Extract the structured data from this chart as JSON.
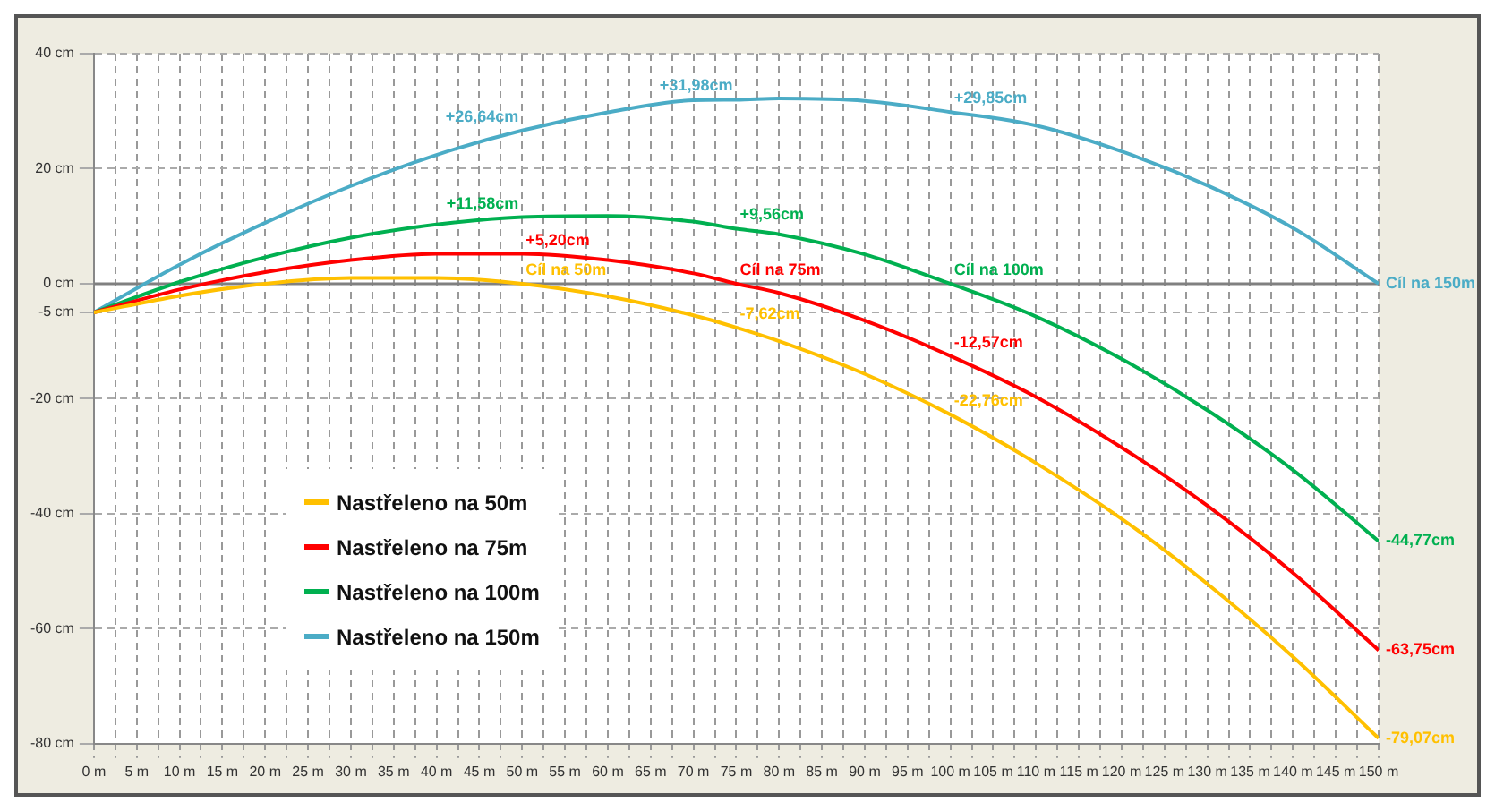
{
  "chart_data": {
    "type": "line",
    "x": [
      0,
      10,
      20,
      30,
      40,
      50,
      60,
      70,
      75,
      80,
      90,
      100,
      110,
      120,
      130,
      140,
      150
    ],
    "series": [
      {
        "name": "Nastřeleno na 50m",
        "color": "#ffc000",
        "values": [
          -5,
          -2.1,
          0,
          1,
          1,
          0,
          -2.2,
          -5.5,
          -7.62,
          -10,
          -15.7,
          -22.76,
          -31.2,
          -40.9,
          -52.2,
          -64.9,
          -79.07
        ]
      },
      {
        "name": "Nastřeleno na 75m",
        "color": "#ff0000",
        "values": [
          -5,
          -1,
          2,
          4.1,
          5.2,
          5.2,
          4.1,
          1.8,
          0,
          -1.6,
          -6.4,
          -12.57,
          -19.7,
          -28.5,
          -38.6,
          -50.3,
          -63.75
        ]
      },
      {
        "name": "Nastřeleno na 100m",
        "color": "#00b050",
        "values": [
          -5,
          0.3,
          4.6,
          8,
          10.3,
          11.58,
          11.8,
          10.8,
          9.56,
          8.6,
          5.1,
          0,
          -5.7,
          -13.1,
          -22,
          -32.4,
          -44.77
        ]
      },
      {
        "name": "Nastřeleno na 150m",
        "color": "#4bacc6",
        "values": [
          -5,
          3.3,
          10.6,
          17,
          22.4,
          26.64,
          29.8,
          31.9,
          31.98,
          32.2,
          31.8,
          29.85,
          27.5,
          23,
          17.1,
          9.7,
          0
        ]
      }
    ],
    "xlim": [
      0,
      150
    ],
    "xticks": [
      {
        "value": 0,
        "label": "0 m"
      },
      {
        "value": 2.5,
        "label": null
      },
      {
        "value": 5,
        "label": "5 m"
      },
      {
        "value": 7.5,
        "label": null
      },
      {
        "value": 10,
        "label": "10 m"
      },
      {
        "value": 12.5,
        "label": null
      },
      {
        "value": 15,
        "label": "15 m"
      },
      {
        "value": 17.5,
        "label": null
      },
      {
        "value": 20,
        "label": "20 m"
      },
      {
        "value": 22.5,
        "label": null
      },
      {
        "value": 25,
        "label": "25 m"
      },
      {
        "value": 27.5,
        "label": null
      },
      {
        "value": 30,
        "label": "30 m"
      },
      {
        "value": 32.5,
        "label": null
      },
      {
        "value": 35,
        "label": "35 m"
      },
      {
        "value": 37.5,
        "label": null
      },
      {
        "value": 40,
        "label": "40 m"
      },
      {
        "value": 42.5,
        "label": null
      },
      {
        "value": 45,
        "label": "45 m"
      },
      {
        "value": 47.5,
        "label": null
      },
      {
        "value": 50,
        "label": "50 m"
      },
      {
        "value": 52.5,
        "label": null
      },
      {
        "value": 55,
        "label": "55 m"
      },
      {
        "value": 57.5,
        "label": null
      },
      {
        "value": 60,
        "label": "60 m"
      },
      {
        "value": 62.5,
        "label": null
      },
      {
        "value": 65,
        "label": "65 m"
      },
      {
        "value": 67.5,
        "label": null
      },
      {
        "value": 70,
        "label": "70 m"
      },
      {
        "value": 72.5,
        "label": null
      },
      {
        "value": 75,
        "label": "75 m"
      },
      {
        "value": 77.5,
        "label": null
      },
      {
        "value": 80,
        "label": "80 m"
      },
      {
        "value": 82.5,
        "label": null
      },
      {
        "value": 85,
        "label": "85 m"
      },
      {
        "value": 87.5,
        "label": null
      },
      {
        "value": 90,
        "label": "90 m"
      },
      {
        "value": 92.5,
        "label": null
      },
      {
        "value": 95,
        "label": "95 m"
      },
      {
        "value": 97.5,
        "label": null
      },
      {
        "value": 100,
        "label": "100 m"
      },
      {
        "value": 102.5,
        "label": null
      },
      {
        "value": 105,
        "label": "105 m"
      },
      {
        "value": 107.5,
        "label": null
      },
      {
        "value": 110,
        "label": "110 m"
      },
      {
        "value": 112.5,
        "label": null
      },
      {
        "value": 115,
        "label": "115 m"
      },
      {
        "value": 117.5,
        "label": null
      },
      {
        "value": 120,
        "label": "120 m"
      },
      {
        "value": 122.5,
        "label": null
      },
      {
        "value": 125,
        "label": "125 m"
      },
      {
        "value": 127.5,
        "label": null
      },
      {
        "value": 130,
        "label": "130 m"
      },
      {
        "value": 132.5,
        "label": null
      },
      {
        "value": 135,
        "label": "135 m"
      },
      {
        "value": 137.5,
        "label": null
      },
      {
        "value": 140,
        "label": "140 m"
      },
      {
        "value": 142.5,
        "label": null
      },
      {
        "value": 145,
        "label": "145 m"
      },
      {
        "value": 147.5,
        "label": null
      },
      {
        "value": 150,
        "label": "150 m"
      }
    ],
    "ylim": [
      -80,
      40
    ],
    "yticks": [
      {
        "value": -80,
        "label": "-80 cm"
      },
      {
        "value": -60,
        "label": "-60 cm"
      },
      {
        "value": -40,
        "label": "-40 cm"
      },
      {
        "value": -20,
        "label": "-20 cm"
      },
      {
        "value": -5,
        "label": "-5 cm"
      },
      {
        "value": 0,
        "label": "0 cm"
      },
      {
        "value": 20,
        "label": "20 cm"
      },
      {
        "value": 40,
        "label": "40 cm"
      }
    ],
    "ref_lines": [
      {
        "axis": "y",
        "value": 0,
        "color": "#808080"
      }
    ],
    "grid": true,
    "legend": "center left",
    "marker": "none",
    "line_style": "solid",
    "annotations": [
      {
        "text": "Cíl na 50m",
        "x": 50,
        "y": 0
      },
      {
        "text": "-7,62cm",
        "x": 75,
        "y": -7.62
      },
      {
        "text": "-22,76cm",
        "x": 100,
        "y": -22.76
      },
      {
        "text": "-79,07cm",
        "x": 150,
        "y": -79.07
      },
      {
        "text": "+5,20cm",
        "x": 50,
        "y": 5.2
      },
      {
        "text": "Cíl na 75m",
        "x": 75,
        "y": 0
      },
      {
        "text": "-12,57cm",
        "x": 100,
        "y": -12.57
      },
      {
        "text": "-63,75cm",
        "x": 150,
        "y": -63.75
      },
      {
        "text": "+11,58cm",
        "x": 50,
        "y": 11.58
      },
      {
        "text": "+9,56cm",
        "x": 75,
        "y": 9.56
      },
      {
        "text": "Cíl na 100m",
        "x": 100,
        "y": 0
      },
      {
        "text": "-44,77cm",
        "x": 150,
        "y": -44.77
      },
      {
        "text": "+26,64cm",
        "x": 50,
        "y": 26.64
      },
      {
        "text": "+31,98cm",
        "x": 75,
        "y": 31.98
      },
      {
        "text": "+29,85cm",
        "x": 100,
        "y": 29.85
      },
      {
        "text": "Cíl na 150m",
        "x": 150,
        "y": 0
      }
    ]
  }
}
